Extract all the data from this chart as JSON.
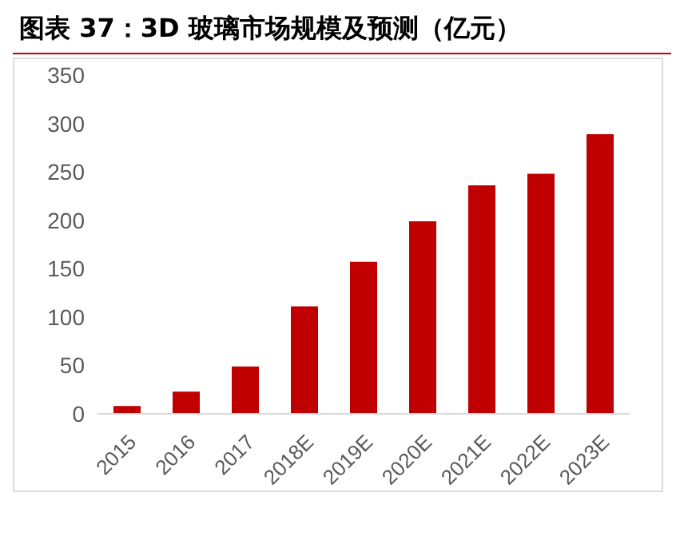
{
  "chart_data": {
    "type": "bar",
    "title": "图表 37：3D 玻璃市场规模及预测（亿元）",
    "categories": [
      "2015",
      "2016",
      "2017",
      "2018E",
      "2019E",
      "2020E",
      "2021E",
      "2022E",
      "2023E"
    ],
    "values": [
      8,
      23,
      49,
      111,
      157,
      199,
      236,
      248,
      289
    ],
    "color": "#c00000",
    "ylim": [
      0,
      350
    ],
    "yticks": [
      0,
      50,
      100,
      150,
      200,
      250,
      300,
      350
    ],
    "grid": false,
    "legend": false
  }
}
